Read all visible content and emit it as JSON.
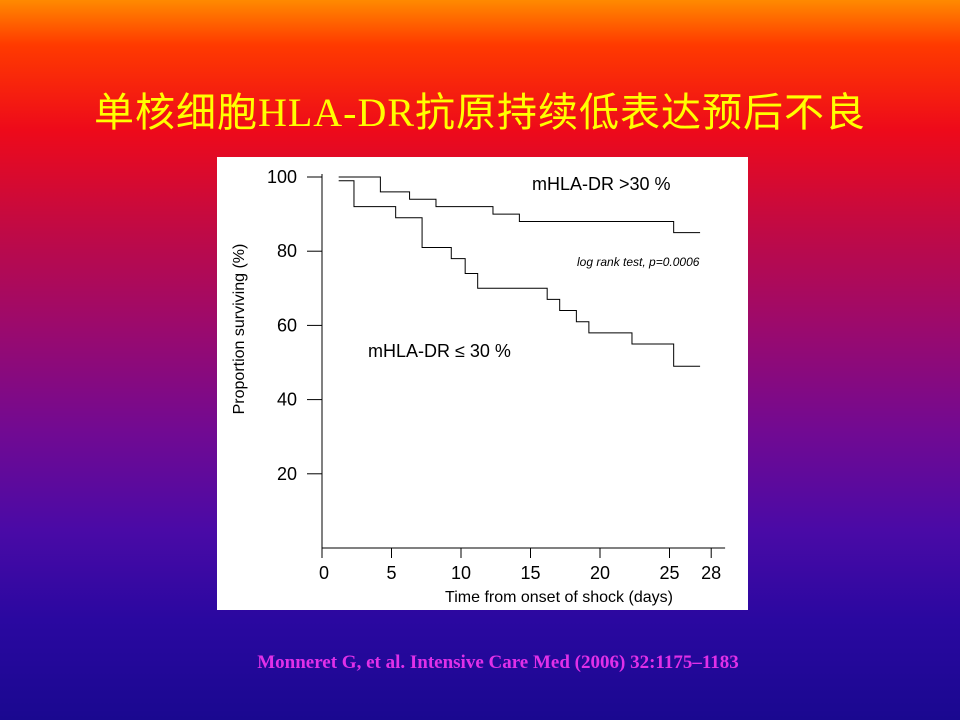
{
  "slide": {
    "title": "单核细胞HLA-DR抗原持续低表达预后不良",
    "citation": "Monneret  G, et al. Intensive Care Med (2006) 32:1175–1183",
    "colors": {
      "title": "#ffff00",
      "citation": "#e030e8",
      "line": "#000000"
    }
  },
  "chart_data": {
    "type": "line",
    "step": true,
    "xlabel": "Time from onset of shock (days)",
    "ylabel": "Proportion surviving (%)",
    "xlim": [
      0,
      29
    ],
    "ylim": [
      0,
      100
    ],
    "xticks": [
      0,
      5,
      10,
      15,
      20,
      25,
      28
    ],
    "yticks": [
      20,
      40,
      60,
      80,
      100
    ],
    "annotation": "log rank test, p=0.0006",
    "series": [
      {
        "name": "mHLA-DR >30 %",
        "x": [
          1.2,
          4.2,
          6.3,
          8.2,
          12.3,
          14.2,
          25.3,
          27.2
        ],
        "y": [
          100,
          96,
          94,
          92,
          90,
          88,
          85,
          85
        ]
      },
      {
        "name": "mHLA-DR ≤ 30 %",
        "x": [
          1.2,
          2.3,
          5.3,
          7.2,
          9.3,
          10.3,
          11.2,
          16.2,
          17.1,
          18.3,
          19.2,
          22.3,
          25.3,
          27.2
        ],
        "y": [
          99,
          92,
          89,
          81,
          78,
          74,
          70,
          67,
          64,
          61,
          58,
          55,
          49,
          49
        ]
      }
    ]
  }
}
